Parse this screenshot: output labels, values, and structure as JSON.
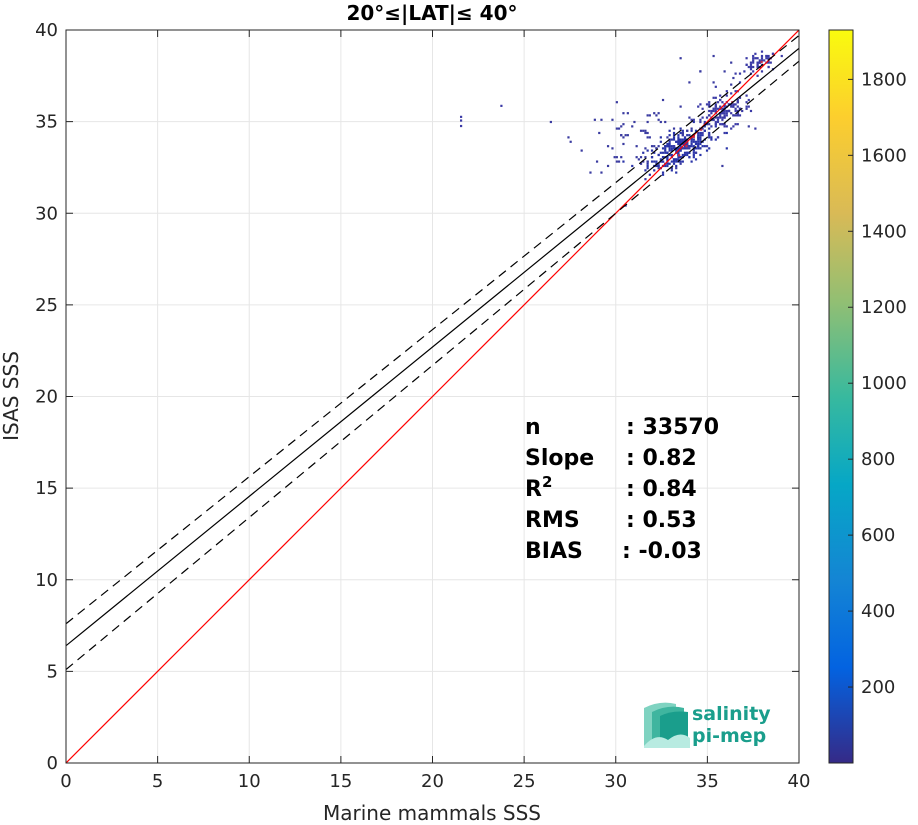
{
  "chart_data": {
    "type": "scatter",
    "title": "20°≤|LAT|≤ 40°",
    "xlabel": "Marine mammals SSS",
    "ylabel": "ISAS SSS",
    "xlim": [
      0,
      40
    ],
    "ylim": [
      0,
      40
    ],
    "xticks": [
      0,
      5,
      10,
      15,
      20,
      25,
      30,
      35,
      40
    ],
    "yticks": [
      0,
      5,
      10,
      15,
      20,
      25,
      30,
      35,
      40
    ],
    "grid": true,
    "lines": [
      {
        "name": "1:1",
        "color": "#ff0000",
        "style": "solid",
        "x": [
          0,
          40
        ],
        "y": [
          0,
          40
        ]
      },
      {
        "name": "fit",
        "color": "#000000",
        "style": "solid",
        "x": [
          0,
          40
        ],
        "y": [
          6.4,
          39.0
        ]
      },
      {
        "name": "fit + rms",
        "color": "#000000",
        "style": "dashed",
        "x": [
          0,
          40
        ],
        "y": [
          7.6,
          39.7
        ]
      },
      {
        "name": "fit - rms",
        "color": "#000000",
        "style": "dashed",
        "x": [
          0,
          40
        ],
        "y": [
          5.1,
          38.3
        ]
      }
    ],
    "density_clusters": [
      {
        "cx": 33.5,
        "cy": 33.5,
        "sx": 0.9,
        "sy": 0.6,
        "corr": 0.6,
        "n": 260,
        "level": 180
      },
      {
        "cx": 35.8,
        "cy": 35.4,
        "sx": 0.8,
        "sy": 0.5,
        "corr": 0.3,
        "n": 140,
        "level": 160
      },
      {
        "cx": 37.8,
        "cy": 38.1,
        "sx": 0.5,
        "sy": 0.3,
        "corr": 0.4,
        "n": 60,
        "level": 150
      },
      {
        "cx": 31.5,
        "cy": 34.0,
        "sx": 1.8,
        "sy": 0.9,
        "corr": 0.0,
        "n": 90,
        "level": 80
      },
      {
        "cx": 35.5,
        "cy": 37.8,
        "sx": 1.3,
        "sy": 0.4,
        "corr": 0.0,
        "n": 12,
        "level": 60
      }
    ],
    "outliers": [
      {
        "x": 21.5,
        "y": 35.0
      },
      {
        "x": 21.5,
        "y": 34.7
      },
      {
        "x": 21.5,
        "y": 35.2
      },
      {
        "x": 23.7,
        "y": 35.8
      }
    ],
    "stats": [
      {
        "label": "n",
        "value": ": 33570"
      },
      {
        "label": "Slope",
        "value": ": 0.82"
      },
      {
        "label": "R",
        "sup": "2",
        "value": ": 0.84"
      },
      {
        "label": "RMS",
        "value": ": 0.53"
      },
      {
        "label": "BIAS",
        "value": ": -0.03"
      }
    ],
    "colorbar": {
      "min": 0,
      "max": 1930,
      "ticks": [
        200,
        400,
        600,
        800,
        1000,
        1200,
        1400,
        1600,
        1800
      ],
      "colormap": "parula"
    }
  },
  "logo": {
    "line1": "salinity",
    "line2": "pi-mep",
    "color": "#1a9e8c"
  }
}
